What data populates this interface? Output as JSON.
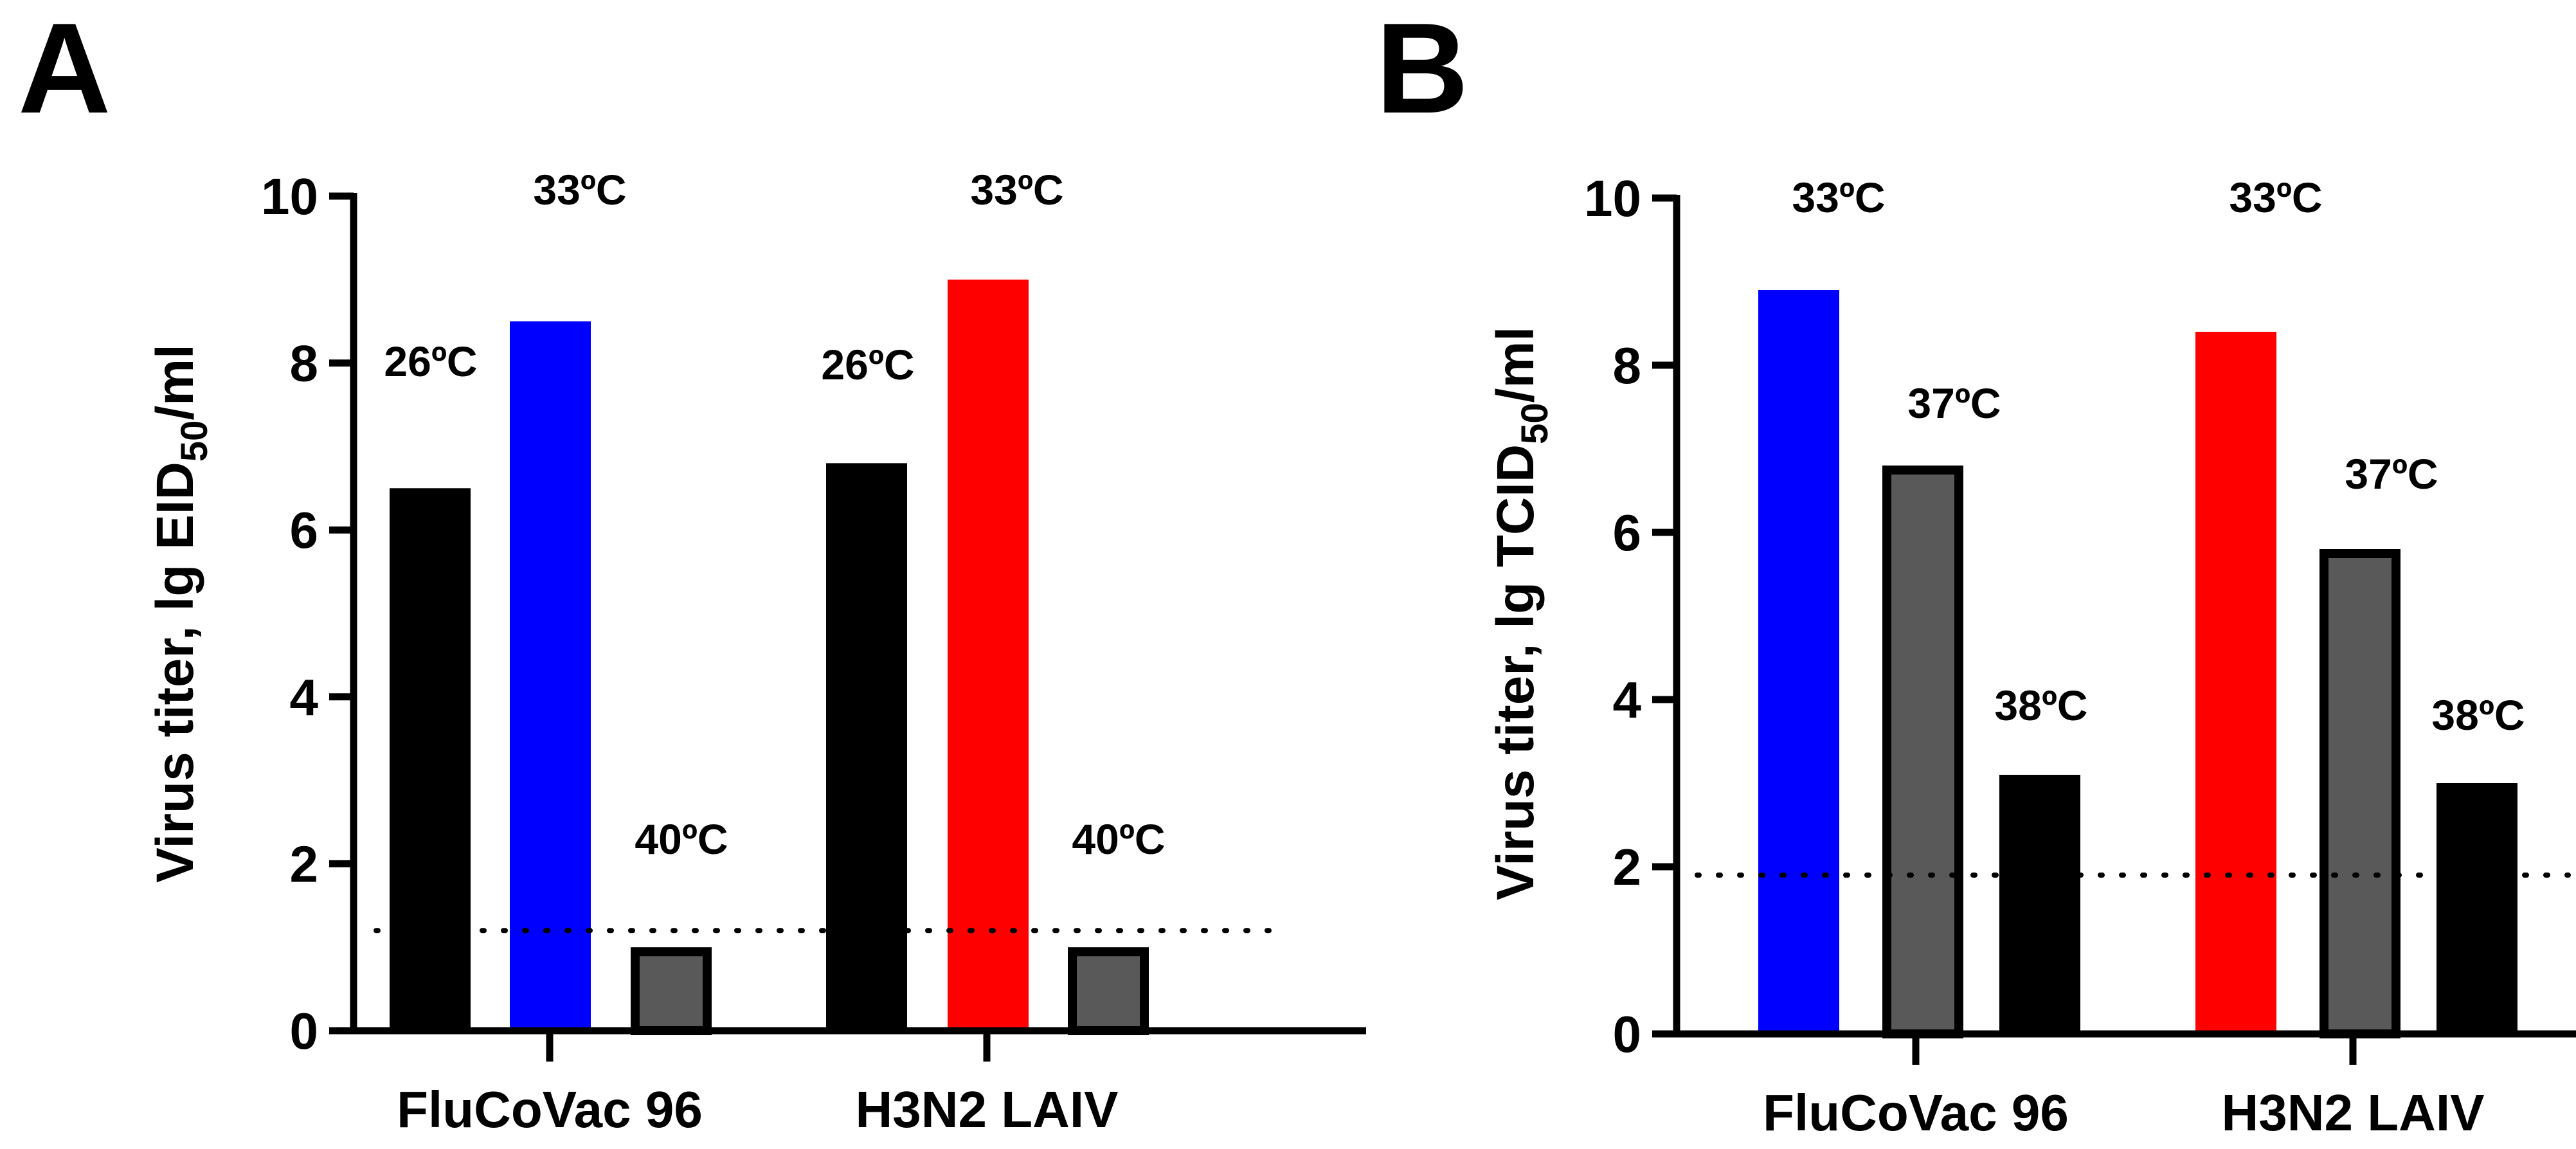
{
  "chart_data": [
    {
      "type": "bar",
      "panel": "A",
      "ylabel": "Virus titer, lg EID",
      "ylabel_sub": "50",
      "ylabel_tail": "/ml",
      "ylim": [
        0,
        10
      ],
      "yticks": [
        "0",
        "2",
        "4",
        "6",
        "8",
        "10"
      ],
      "categories": [
        "FluCoVac 96",
        "H3N2 LAIV"
      ],
      "detection_limit": 1.2,
      "groups": [
        {
          "category": "FluCoVac 96",
          "bars": [
            {
              "label": "26ºC",
              "value": 6.5,
              "fill": "#000000",
              "outlined": false
            },
            {
              "label": "33ºC",
              "value": 8.5,
              "fill": "#0000ff",
              "outlined": false
            },
            {
              "label": "40ºC",
              "value": 1.0,
              "fill": "#595959",
              "outlined": true
            }
          ]
        },
        {
          "category": "H3N2 LAIV",
          "bars": [
            {
              "label": "26ºC",
              "value": 6.8,
              "fill": "#000000",
              "outlined": false
            },
            {
              "label": "33ºC",
              "value": 9.0,
              "fill": "#ff0000",
              "outlined": false
            },
            {
              "label": "40ºC",
              "value": 1.0,
              "fill": "#595959",
              "outlined": true
            }
          ]
        }
      ]
    },
    {
      "type": "bar",
      "panel": "B",
      "ylabel": "Virus titer, lg TCID",
      "ylabel_sub": "50",
      "ylabel_tail": "/ml",
      "ylim": [
        0,
        10
      ],
      "yticks": [
        "0",
        "2",
        "4",
        "6",
        "8",
        "10"
      ],
      "categories": [
        "FluCoVac 96",
        "H3N2 LAIV"
      ],
      "detection_limit": 1.9,
      "groups": [
        {
          "category": "FluCoVac 96",
          "bars": [
            {
              "label": "33ºC",
              "value": 8.9,
              "fill": "#0000ff",
              "outlined": false
            },
            {
              "label": "37ºC",
              "value": 6.8,
              "fill": "#595959",
              "outlined": true
            },
            {
              "label": "38ºC",
              "value": 3.1,
              "fill": "#000000",
              "outlined": false
            }
          ]
        },
        {
          "category": "H3N2 LAIV",
          "bars": [
            {
              "label": "33ºC",
              "value": 8.4,
              "fill": "#ff0000",
              "outlined": false
            },
            {
              "label": "37ºC",
              "value": 5.8,
              "fill": "#595959",
              "outlined": true
            },
            {
              "label": "38ºC",
              "value": 3.0,
              "fill": "#000000",
              "outlined": false
            }
          ]
        }
      ]
    }
  ]
}
